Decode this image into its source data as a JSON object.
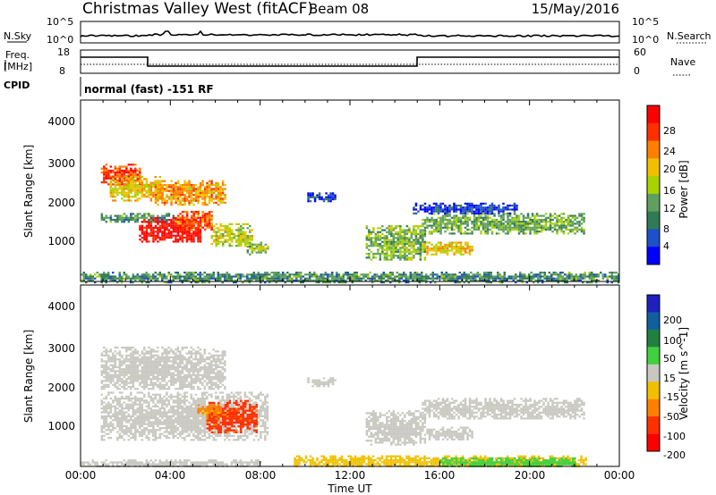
{
  "header": {
    "title": "Christmas Valley West (fitACF)",
    "beam": "Beam 08",
    "date": "15/May/2016",
    "mode": "normal (fast) -151 RF"
  },
  "params": {
    "nsky_label": "N.Sky",
    "nsky_ticks": [
      "10^5",
      "10^0"
    ],
    "nsearch_label": "N.Search",
    "nsearch_ticks": [
      "10^5",
      "10^0"
    ],
    "freq_label": "Freq.",
    "freq_unit": "[MHz]",
    "freq_ticks": [
      "18",
      "8"
    ],
    "nave_label": "Nave",
    "nave_ticks": [
      "60",
      "0"
    ],
    "cpid_label": "CPID"
  },
  "colors": {
    "power": [
      "#0000ff",
      "#1e50c8",
      "#307a55",
      "#5fa060",
      "#a8d200",
      "#f0c000",
      "#ff8000",
      "#ff3000",
      "#ff0000"
    ],
    "velocity": [
      "#2020c0",
      "#1060a0",
      "#208040",
      "#40d040",
      "#c8c8c0",
      "#f0c000",
      "#ff8000",
      "#ff3000",
      "#ff0000"
    ],
    "gray": "#c8c8c0"
  },
  "chart_data": [
    {
      "type": "heatmap",
      "name": "power",
      "xlabel": "Time UT",
      "ylabel": "Slant Range [km]",
      "xticks": [
        "00:00",
        "04:00",
        "08:00",
        "12:00",
        "16:00",
        "20:00",
        "00:00"
      ],
      "yticks": [
        "1000",
        "2000",
        "3000",
        "4000"
      ],
      "xlim": [
        0,
        24
      ],
      "ylim": [
        180,
        4600
      ],
      "colorbar": {
        "label": "Power [dB]",
        "ticks": [
          "4",
          "8",
          "12",
          "16",
          "20",
          "24",
          "28"
        ],
        "range": [
          2,
          30
        ]
      },
      "regions": [
        {
          "t": [
            0.9,
            4.2
          ],
          "r": [
            1650,
            1850
          ],
          "v": 11
        },
        {
          "t": [
            2.6,
            5.3
          ],
          "r": [
            1150,
            1750
          ],
          "v": 29
        },
        {
          "t": [
            4.2,
            5.8
          ],
          "r": [
            1450,
            1900
          ],
          "v": 24
        },
        {
          "t": [
            5.8,
            7.6
          ],
          "r": [
            1050,
            1600
          ],
          "v": 17
        },
        {
          "t": [
            7.4,
            8.3
          ],
          "r": [
            850,
            1150
          ],
          "v": 15
        },
        {
          "t": [
            0.9,
            2.6
          ],
          "r": [
            2550,
            3050
          ],
          "v": 25
        },
        {
          "t": [
            1.3,
            3.6
          ],
          "r": [
            2150,
            2750
          ],
          "v": 19
        },
        {
          "t": [
            3.3,
            6.4
          ],
          "r": [
            2050,
            2650
          ],
          "v": 21
        },
        {
          "t": [
            10.1,
            11.3
          ],
          "r": [
            2150,
            2350
          ],
          "v": 6
        },
        {
          "t": [
            12.7,
            15.3
          ],
          "r": [
            700,
            1550
          ],
          "v": 14
        },
        {
          "t": [
            15.2,
            22.4
          ],
          "r": [
            1350,
            1850
          ],
          "v": 13
        },
        {
          "t": [
            15.4,
            17.4
          ],
          "r": [
            850,
            1150
          ],
          "v": 19
        },
        {
          "t": [
            14.8,
            19.4
          ],
          "r": [
            1850,
            2100
          ],
          "v": 6
        },
        {
          "t": [
            0.0,
            24.0
          ],
          "r": [
            180,
            420
          ],
          "v": 11
        }
      ]
    },
    {
      "type": "heatmap",
      "name": "velocity",
      "xlabel": "Time UT",
      "ylabel": "Slant Range [km]",
      "xticks": [
        "00:00",
        "04:00",
        "08:00",
        "12:00",
        "16:00",
        "20:00",
        "00:00"
      ],
      "yticks": [
        "1000",
        "2000",
        "3000",
        "4000"
      ],
      "xlim": [
        0,
        24
      ],
      "ylim": [
        180,
        4600
      ],
      "colorbar": {
        "label": "Velocity [m s^-1]",
        "ticks": [
          "200",
          "100",
          "50",
          "15",
          "-15",
          "-50",
          "-100",
          "-200"
        ],
        "range": [
          -250,
          250
        ]
      },
      "regions": [
        {
          "t": [
            0.9,
            8.3
          ],
          "r": [
            850,
            2000
          ],
          "v": 0
        },
        {
          "t": [
            0.9,
            6.4
          ],
          "r": [
            2050,
            3100
          ],
          "v": 0
        },
        {
          "t": [
            5.6,
            7.8
          ],
          "r": [
            1000,
            1800
          ],
          "v": -110
        },
        {
          "t": [
            5.2,
            6.2
          ],
          "r": [
            1400,
            1700
          ],
          "v": -60
        },
        {
          "t": [
            10.1,
            11.3
          ],
          "r": [
            2150,
            2350
          ],
          "v": 0
        },
        {
          "t": [
            12.7,
            15.3
          ],
          "r": [
            700,
            1550
          ],
          "v": 0
        },
        {
          "t": [
            15.2,
            22.4
          ],
          "r": [
            1350,
            1850
          ],
          "v": 0
        },
        {
          "t": [
            15.4,
            17.4
          ],
          "r": [
            850,
            1150
          ],
          "v": 0
        },
        {
          "t": [
            9.5,
            22.5
          ],
          "r": [
            180,
            450
          ],
          "v": -30
        },
        {
          "t": [
            16.0,
            22.0
          ],
          "r": [
            180,
            400
          ],
          "v": 30
        },
        {
          "t": [
            0.0,
            8.0
          ],
          "r": [
            180,
            350
          ],
          "v": 0
        }
      ]
    }
  ]
}
